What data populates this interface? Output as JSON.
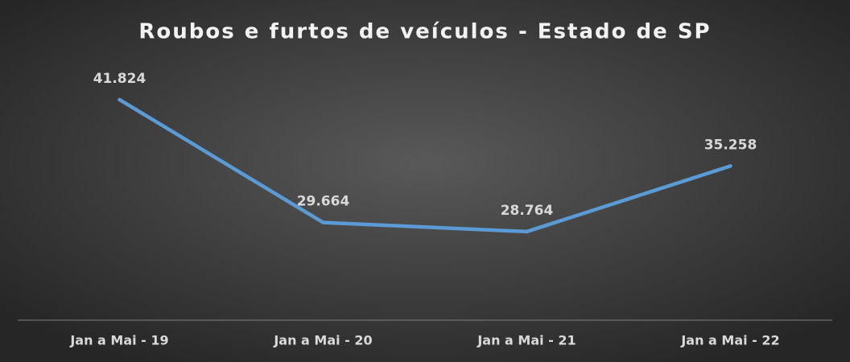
{
  "chart_data": {
    "type": "line",
    "title": "Roubos e furtos de veículos - Estado de SP",
    "categories": [
      "Jan a Mai - 19",
      "Jan a Mai - 20",
      "Jan a Mai - 21",
      "Jan a Mai - 22"
    ],
    "series": [
      {
        "name": "Roubos e furtos",
        "color": "#5b9bd5",
        "values": [
          41824,
          29664,
          28764,
          35258
        ],
        "value_labels": [
          "41.824",
          "29.664",
          "28.764",
          "35.258"
        ]
      }
    ],
    "ylim": [
      20000,
      45000
    ]
  }
}
